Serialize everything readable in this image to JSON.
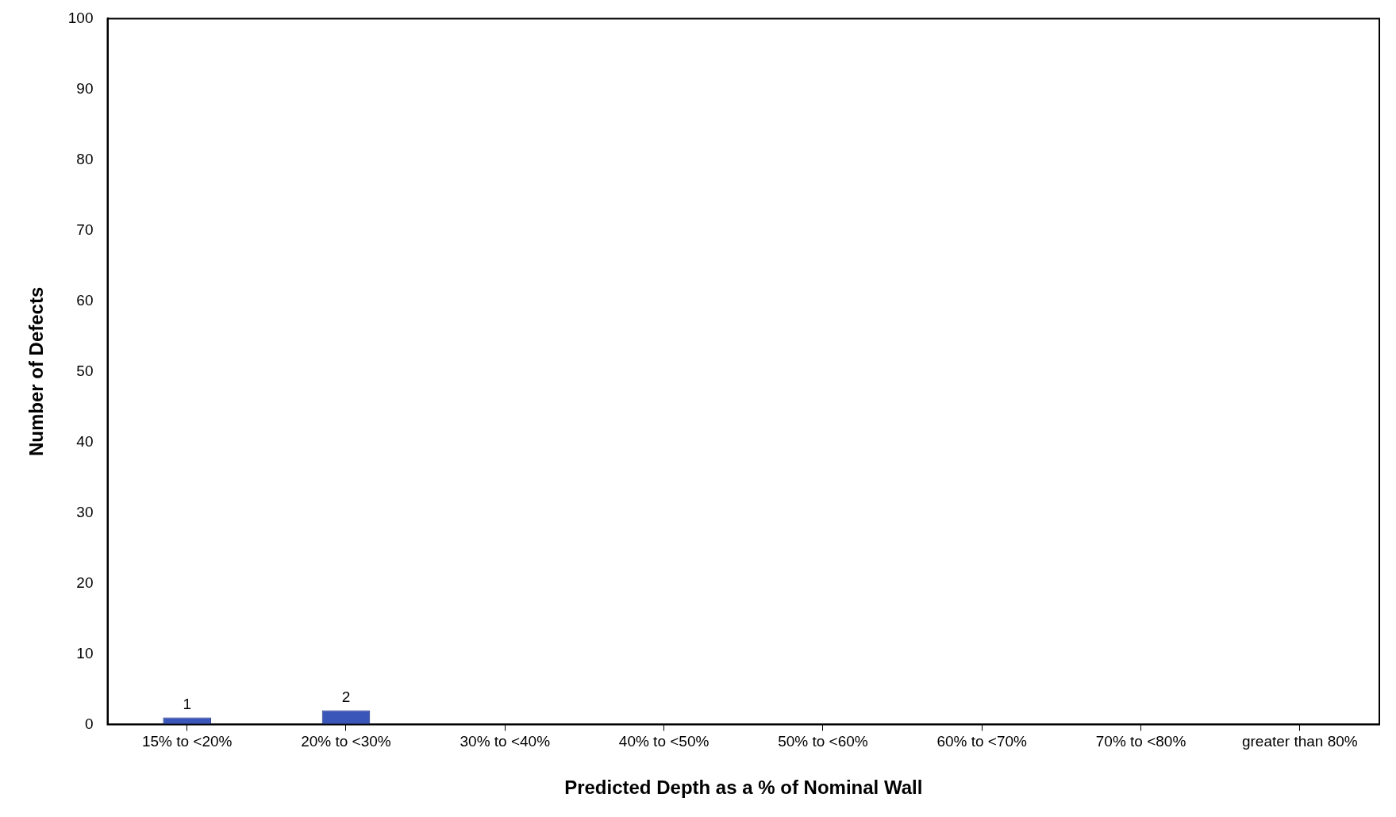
{
  "chart_data": {
    "type": "bar",
    "xlabel": "Predicted Depth as a % of Nominal Wall",
    "ylabel": "Number of Defects",
    "categories": [
      "15% to <20%",
      "20% to <30%",
      "30% to <40%",
      "40% to <50%",
      "50% to <60%",
      "60% to <70%",
      "70% to <80%",
      "greater than 80%"
    ],
    "values": [
      1,
      2,
      0,
      0,
      0,
      0,
      0,
      0
    ],
    "value_labels": [
      "1",
      "2",
      null,
      null,
      null,
      null,
      null,
      null
    ],
    "color": "#3a56b8",
    "ylim": [
      0,
      100
    ],
    "yticks": [
      0,
      10,
      20,
      30,
      40,
      50,
      60,
      70,
      80,
      90,
      100
    ],
    "grid": false,
    "legend": false
  }
}
